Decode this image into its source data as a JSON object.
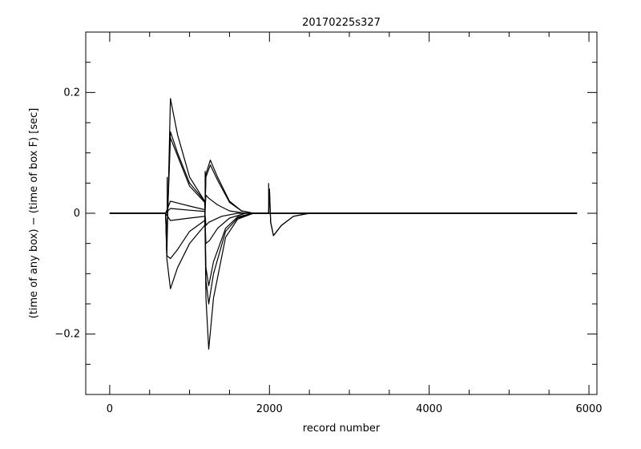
{
  "chart_data": {
    "type": "line",
    "title": "20170225s327",
    "xlabel": "record number",
    "ylabel": "(time of any box) − (time of box F) [sec]",
    "xlim": [
      -300,
      6100
    ],
    "ylim": [
      -0.3,
      0.3
    ],
    "x_ticks": [
      0,
      2000,
      4000,
      6000
    ],
    "x_tick_labels": [
      "0",
      "2000",
      "4000",
      "6000"
    ],
    "y_ticks": [
      -0.2,
      0,
      0.2
    ],
    "y_tick_labels": [
      "−0.2",
      "0",
      "0.2"
    ],
    "x_minor_step": 500,
    "y_minor_step": 0.05,
    "grid": false,
    "legend": "none",
    "line_color": "#000000",
    "events": [
      {
        "x": 720,
        "step": 0.06
      },
      {
        "x": 1195,
        "step": 0.07
      },
      {
        "x": 1990,
        "step": 0.05
      }
    ],
    "series": [
      {
        "values": [
          [
            0,
            0
          ],
          [
            700,
            0
          ],
          [
            715,
            -0.07
          ],
          [
            760,
            0.19
          ],
          [
            850,
            0.13
          ],
          [
            1000,
            0.06
          ],
          [
            1190,
            0.02
          ],
          [
            1205,
            -0.14
          ],
          [
            1240,
            -0.225
          ],
          [
            1300,
            -0.14
          ],
          [
            1450,
            -0.04
          ],
          [
            1600,
            -0.01
          ],
          [
            1800,
            0
          ],
          [
            1990,
            0
          ],
          [
            2000,
            0.04
          ],
          [
            2015,
            -0.015
          ],
          [
            2050,
            -0.037
          ],
          [
            2150,
            -0.02
          ],
          [
            2300,
            -0.005
          ],
          [
            2500,
            0
          ],
          [
            5850,
            0
          ]
        ]
      },
      {
        "values": [
          [
            0,
            0
          ],
          [
            700,
            0
          ],
          [
            715,
            -0.04
          ],
          [
            760,
            0.135
          ],
          [
            850,
            0.1
          ],
          [
            1000,
            0.05
          ],
          [
            1190,
            0.02
          ],
          [
            1205,
            -0.11
          ],
          [
            1240,
            -0.15
          ],
          [
            1300,
            -0.1
          ],
          [
            1450,
            -0.03
          ],
          [
            1600,
            -0.008
          ],
          [
            1800,
            0
          ],
          [
            1990,
            0
          ],
          [
            2000,
            0.04
          ],
          [
            2015,
            -0.015
          ],
          [
            2050,
            -0.037
          ],
          [
            2150,
            -0.02
          ],
          [
            2300,
            -0.005
          ],
          [
            2500,
            0
          ],
          [
            5850,
            0
          ]
        ]
      },
      {
        "values": [
          [
            0,
            0
          ],
          [
            700,
            0
          ],
          [
            715,
            -0.04
          ],
          [
            760,
            0.125
          ],
          [
            850,
            0.095
          ],
          [
            1000,
            0.045
          ],
          [
            1190,
            0.018
          ],
          [
            1205,
            -0.09
          ],
          [
            1240,
            -0.12
          ],
          [
            1300,
            -0.08
          ],
          [
            1450,
            -0.025
          ],
          [
            1600,
            -0.006
          ],
          [
            1800,
            0
          ],
          [
            2500,
            0
          ],
          [
            5850,
            0
          ]
        ]
      },
      {
        "values": [
          [
            0,
            0
          ],
          [
            700,
            0
          ],
          [
            715,
            -0.075
          ],
          [
            760,
            -0.125
          ],
          [
            850,
            -0.09
          ],
          [
            1000,
            -0.05
          ],
          [
            1190,
            -0.02
          ],
          [
            1205,
            0.065
          ],
          [
            1260,
            0.088
          ],
          [
            1350,
            0.06
          ],
          [
            1500,
            0.02
          ],
          [
            1650,
            0.004
          ],
          [
            1800,
            0
          ],
          [
            2500,
            0
          ],
          [
            5850,
            0
          ]
        ]
      },
      {
        "values": [
          [
            0,
            0
          ],
          [
            700,
            0
          ],
          [
            715,
            -0.07
          ],
          [
            760,
            -0.075
          ],
          [
            850,
            -0.06
          ],
          [
            1000,
            -0.03
          ],
          [
            1190,
            -0.012
          ],
          [
            1205,
            0.06
          ],
          [
            1260,
            0.08
          ],
          [
            1350,
            0.055
          ],
          [
            1500,
            0.018
          ],
          [
            1650,
            0.004
          ],
          [
            1800,
            0
          ],
          [
            2500,
            0
          ],
          [
            5850,
            0
          ]
        ]
      },
      {
        "values": [
          [
            0,
            0
          ],
          [
            700,
            0
          ],
          [
            760,
            -0.012
          ],
          [
            1000,
            -0.008
          ],
          [
            1190,
            -0.005
          ],
          [
            1205,
            0.03
          ],
          [
            1240,
            0.025
          ],
          [
            1350,
            0.014
          ],
          [
            1500,
            0.004
          ],
          [
            1700,
            0
          ],
          [
            5850,
            0
          ]
        ]
      },
      {
        "values": [
          [
            0,
            0
          ],
          [
            700,
            0
          ],
          [
            760,
            0.008
          ],
          [
            1000,
            0.005
          ],
          [
            1190,
            0.003
          ],
          [
            1205,
            -0.05
          ],
          [
            1250,
            -0.045
          ],
          [
            1350,
            -0.025
          ],
          [
            1500,
            -0.008
          ],
          [
            1700,
            0
          ],
          [
            5850,
            0
          ]
        ]
      },
      {
        "values": [
          [
            0,
            0
          ],
          [
            700,
            0
          ],
          [
            760,
            0.02
          ],
          [
            1000,
            0.012
          ],
          [
            1190,
            0.006
          ],
          [
            1205,
            -0.02
          ],
          [
            1240,
            -0.015
          ],
          [
            1400,
            -0.005
          ],
          [
            1600,
            0
          ],
          [
            5850,
            0
          ]
        ]
      }
    ]
  }
}
